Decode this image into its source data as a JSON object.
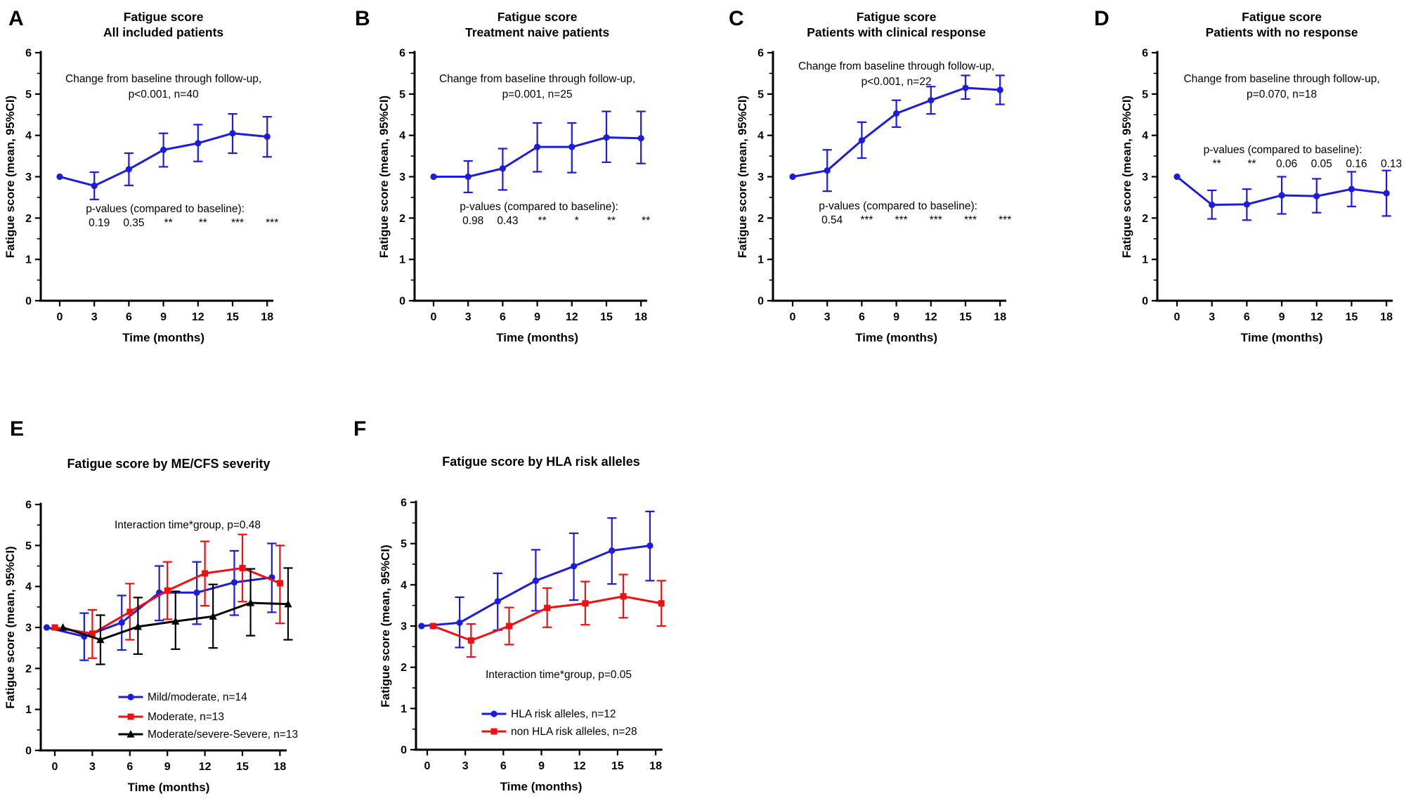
{
  "figure": {
    "background": "#ffffff",
    "accent_blue": "#1c1ce0",
    "accent_red": "#ee1111",
    "accent_black": "#000000"
  },
  "chart_data": [
    {
      "panel": "A",
      "type": "line",
      "title": "Fatigue score",
      "subtitle": "All included patients",
      "annotation": [
        "Change from baseline through follow-up,",
        "p<0.001, n=40"
      ],
      "p_label": "p-values (compared to baseline):",
      "p_months": [
        3,
        6,
        9,
        12,
        15,
        18
      ],
      "p_values": [
        "0.19",
        "0.35",
        "**",
        "**",
        "***",
        "***"
      ],
      "xlabel": "Time (months)",
      "ylabel": "Fatigue score (mean, 95%CI)",
      "x": [
        0,
        3,
        6,
        9,
        12,
        15,
        18
      ],
      "xticks": [
        0,
        3,
        6,
        9,
        12,
        15,
        18
      ],
      "yticks": [
        0,
        1,
        2,
        3,
        4,
        5,
        6
      ],
      "ylim": [
        0,
        6
      ],
      "grid": false,
      "series": [
        {
          "name": "All included patients",
          "color": "#1c1ce0",
          "marker": "circle",
          "offset": 0,
          "y": [
            3.0,
            2.78,
            3.18,
            3.65,
            3.81,
            4.05,
            3.97
          ],
          "ci_low": [
            null,
            2.45,
            2.79,
            3.24,
            3.37,
            3.57,
            3.48
          ],
          "ci_high": [
            null,
            3.11,
            3.57,
            4.05,
            4.26,
            4.52,
            4.45
          ]
        }
      ]
    },
    {
      "panel": "B",
      "type": "line",
      "title": "Fatigue score",
      "subtitle": "Treatment naive patients",
      "annotation": [
        "Change from baseline through follow-up,",
        "p=0.001, n=25"
      ],
      "p_label": "p-values (compared to baseline):",
      "p_months": [
        3,
        6,
        9,
        12,
        15,
        18
      ],
      "p_values": [
        "0.98",
        "0.43",
        "**",
        "*",
        "**",
        "**"
      ],
      "xlabel": "Time (months)",
      "ylabel": "Fatigue score (mean, 95%CI)",
      "x": [
        0,
        3,
        6,
        9,
        12,
        15,
        18
      ],
      "xticks": [
        0,
        3,
        6,
        9,
        12,
        15,
        18
      ],
      "yticks": [
        0,
        1,
        2,
        3,
        4,
        5,
        6
      ],
      "ylim": [
        0,
        6
      ],
      "grid": false,
      "series": [
        {
          "name": "Treatment naive patients",
          "color": "#1c1ce0",
          "marker": "circle",
          "offset": 0,
          "y": [
            3.0,
            3.0,
            3.2,
            3.72,
            3.72,
            3.95,
            3.93
          ],
          "ci_low": [
            null,
            2.62,
            2.68,
            3.12,
            3.1,
            3.35,
            3.32
          ],
          "ci_high": [
            null,
            3.38,
            3.68,
            4.3,
            4.3,
            4.58,
            4.58
          ]
        }
      ]
    },
    {
      "panel": "C",
      "type": "line",
      "title": "Fatigue score",
      "subtitle": "Patients with clinical response",
      "annotation": [
        "Change from baseline through follow-up,",
        "p<0.001, n=22"
      ],
      "p_label": "p-values (compared to baseline):",
      "p_months": [
        3,
        6,
        9,
        12,
        15,
        18
      ],
      "p_values": [
        "0.54",
        "***",
        "***",
        "***",
        "***",
        "***"
      ],
      "xlabel": "Time (months)",
      "ylabel": "Fatigue score (mean, 95%CI)",
      "x": [
        0,
        3,
        6,
        9,
        12,
        15,
        18
      ],
      "xticks": [
        0,
        3,
        6,
        9,
        12,
        15,
        18
      ],
      "yticks": [
        0,
        1,
        2,
        3,
        4,
        5,
        6
      ],
      "ylim": [
        0,
        6
      ],
      "grid": false,
      "series": [
        {
          "name": "Patients with clinical response",
          "color": "#1c1ce0",
          "marker": "circle",
          "offset": 0,
          "y": [
            3.0,
            3.15,
            3.88,
            4.53,
            4.85,
            5.15,
            5.1
          ],
          "ci_low": [
            null,
            2.65,
            3.45,
            4.2,
            4.52,
            4.88,
            4.75
          ],
          "ci_high": [
            null,
            3.65,
            4.32,
            4.85,
            5.18,
            5.45,
            5.45
          ]
        }
      ]
    },
    {
      "panel": "D",
      "type": "line",
      "title": "Fatigue score",
      "subtitle": "Patients with no response",
      "annotation": [
        "Change from baseline through follow-up,",
        "p=0.070, n=18"
      ],
      "p_label": "p-values (compared to baseline):",
      "p_months": [
        3,
        6,
        9,
        12,
        15,
        18
      ],
      "p_values": [
        "**",
        "**",
        "0.06",
        "0.05",
        "0.16",
        "0.13"
      ],
      "xlabel": "Time (months)",
      "ylabel": "Fatigue score (mean, 95%CI)",
      "x": [
        0,
        3,
        6,
        9,
        12,
        15,
        18
      ],
      "xticks": [
        0,
        3,
        6,
        9,
        12,
        15,
        18
      ],
      "yticks": [
        0,
        1,
        2,
        3,
        4,
        5,
        6
      ],
      "ylim": [
        0,
        6
      ],
      "grid": false,
      "series": [
        {
          "name": "Patients with no response",
          "color": "#1c1ce0",
          "marker": "circle",
          "offset": 0,
          "y": [
            3.0,
            2.32,
            2.33,
            2.55,
            2.53,
            2.7,
            2.6
          ],
          "ci_low": [
            null,
            1.98,
            1.95,
            2.1,
            2.13,
            2.28,
            2.05
          ],
          "ci_high": [
            null,
            2.67,
            2.7,
            3.0,
            2.95,
            3.12,
            3.15
          ]
        }
      ]
    },
    {
      "panel": "E",
      "type": "line",
      "title": "Fatigue score by ME/CFS severity",
      "interaction": "Interaction time*group, p=0.48",
      "xlabel": "Time (months)",
      "ylabel": "Fatigue score (mean, 95%CI)",
      "x": [
        0,
        3,
        6,
        9,
        12,
        15,
        18
      ],
      "xticks": [
        0,
        3,
        6,
        9,
        12,
        15,
        18
      ],
      "yticks": [
        0,
        1,
        2,
        3,
        4,
        5,
        6
      ],
      "ylim": [
        0,
        6
      ],
      "grid": false,
      "legend_position": "inside-bottom",
      "series": [
        {
          "name": "Mild/moderate, n=14",
          "color": "#1c1ce0",
          "marker": "circle",
          "offset": -0.65,
          "y": [
            3.0,
            2.78,
            3.12,
            3.85,
            3.85,
            4.1,
            4.22
          ],
          "ci_low": [
            null,
            2.2,
            2.45,
            3.17,
            3.08,
            3.3,
            3.37
          ],
          "ci_high": [
            null,
            3.35,
            3.78,
            4.5,
            4.6,
            4.87,
            5.05
          ]
        },
        {
          "name": "Moderate, n=13",
          "color": "#ee1111",
          "marker": "square",
          "offset": 0,
          "y": [
            3.0,
            2.85,
            3.38,
            3.9,
            4.32,
            4.45,
            4.08
          ],
          "ci_low": [
            null,
            2.25,
            2.7,
            3.2,
            3.53,
            3.63,
            3.1
          ],
          "ci_high": [
            null,
            3.43,
            4.07,
            4.6,
            5.1,
            5.27,
            5.0
          ]
        },
        {
          "name": "Moderate/severe-Severe, n=13",
          "color": "#000000",
          "marker": "triangle",
          "offset": 0.65,
          "y": [
            3.0,
            2.7,
            3.02,
            3.15,
            3.27,
            3.6,
            3.57
          ],
          "ci_low": [
            null,
            2.1,
            2.35,
            2.47,
            2.5,
            2.8,
            2.7
          ],
          "ci_high": [
            null,
            3.3,
            3.73,
            3.88,
            4.05,
            4.43,
            4.45
          ]
        }
      ]
    },
    {
      "panel": "F",
      "type": "line",
      "title": "Fatigue score by HLA risk alleles",
      "interaction": "Interaction time*group, p=0.05",
      "xlabel": "Time (months)",
      "ylabel": "Fatigue score (mean, 95%CI)",
      "x": [
        0,
        3,
        6,
        9,
        12,
        15,
        18
      ],
      "xticks": [
        0,
        3,
        6,
        9,
        12,
        15,
        18
      ],
      "yticks": [
        0,
        1,
        2,
        3,
        4,
        5,
        6
      ],
      "ylim": [
        0,
        6
      ],
      "grid": false,
      "legend_position": "inside-bottom",
      "series": [
        {
          "name": "HLA risk alleles, n=12",
          "color": "#1c1ce0",
          "marker": "circle",
          "offset": -0.45,
          "y": [
            3.0,
            3.08,
            3.6,
            4.1,
            4.45,
            4.83,
            4.95
          ],
          "ci_low": [
            null,
            2.48,
            2.9,
            3.37,
            3.63,
            4.02,
            4.1
          ],
          "ci_high": [
            null,
            3.7,
            4.28,
            4.85,
            5.25,
            5.62,
            5.78
          ]
        },
        {
          "name": "non HLA risk alleles, n=28",
          "color": "#ee1111",
          "marker": "square",
          "offset": 0.45,
          "y": [
            3.0,
            2.65,
            3.0,
            3.44,
            3.55,
            3.72,
            3.55
          ],
          "ci_low": [
            null,
            2.25,
            2.55,
            2.97,
            3.03,
            3.2,
            3.0
          ],
          "ci_high": [
            null,
            3.05,
            3.45,
            3.92,
            4.08,
            4.25,
            4.1
          ]
        }
      ]
    }
  ]
}
